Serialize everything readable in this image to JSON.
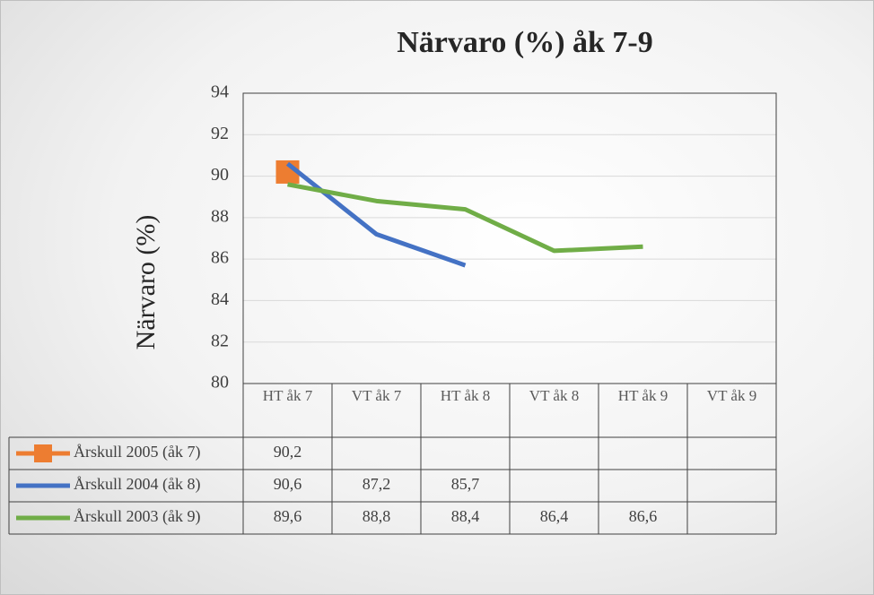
{
  "chart_data": {
    "type": "line",
    "title": "Närvaro (%) åk 7-9",
    "y_label": "Närvaro (%)",
    "categories": [
      "HT åk 7",
      "VT åk 7",
      "HT åk 8",
      "VT åk 8",
      "HT åk 9",
      "VT åk 9"
    ],
    "series": [
      {
        "name": "Årskull 2005 (åk 7)",
        "color": "#ed7d31",
        "marker": "square",
        "values": [
          90.2,
          null,
          null,
          null,
          null,
          null
        ],
        "value_labels": [
          "90,2",
          null,
          null,
          null,
          null,
          null
        ]
      },
      {
        "name": "Årskull 2004 (åk 8)",
        "color": "#4472c4",
        "values": [
          90.6,
          87.2,
          85.7,
          null,
          null,
          null
        ],
        "value_labels": [
          "90,6",
          "87,2",
          "85,7",
          null,
          null,
          null
        ]
      },
      {
        "name": "Årskull 2003 (åk 9)",
        "color": "#70ad47",
        "values": [
          89.6,
          88.8,
          88.4,
          86.4,
          86.6,
          null
        ],
        "value_labels": [
          "89,6",
          "88,8",
          "88,4",
          "86,4",
          "86,6",
          null
        ]
      }
    ],
    "ylim": [
      80,
      94
    ],
    "yticks": [
      80,
      82,
      84,
      86,
      88,
      90,
      92,
      94
    ],
    "grid": true,
    "data_table": true
  }
}
